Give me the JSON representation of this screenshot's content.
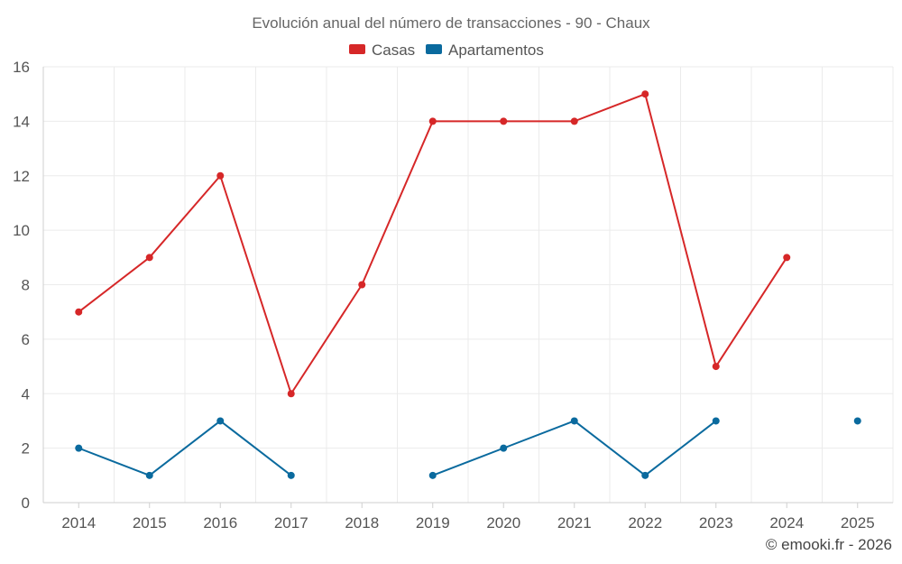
{
  "chart_data": {
    "type": "line",
    "title": "Evolución anual del número de transacciones - 90 - Chaux",
    "categories": [
      "2014",
      "2015",
      "2016",
      "2017",
      "2018",
      "2019",
      "2020",
      "2021",
      "2022",
      "2023",
      "2024",
      "2025"
    ],
    "ylim": [
      0,
      16
    ],
    "yticks": [
      0,
      2,
      4,
      6,
      8,
      10,
      12,
      14,
      16
    ],
    "grid": true,
    "legend_position": "top-center",
    "series": [
      {
        "name": "Casas",
        "color": "#d62728",
        "values": [
          7,
          9,
          12,
          4,
          8,
          14,
          14,
          14,
          15,
          5,
          9,
          null
        ]
      },
      {
        "name": "Apartamentos",
        "color": "#0a6a9e",
        "values": [
          2,
          1,
          3,
          1,
          null,
          1,
          2,
          3,
          1,
          3,
          null,
          3
        ]
      }
    ]
  },
  "credit": "© emooki.fr - 2026"
}
